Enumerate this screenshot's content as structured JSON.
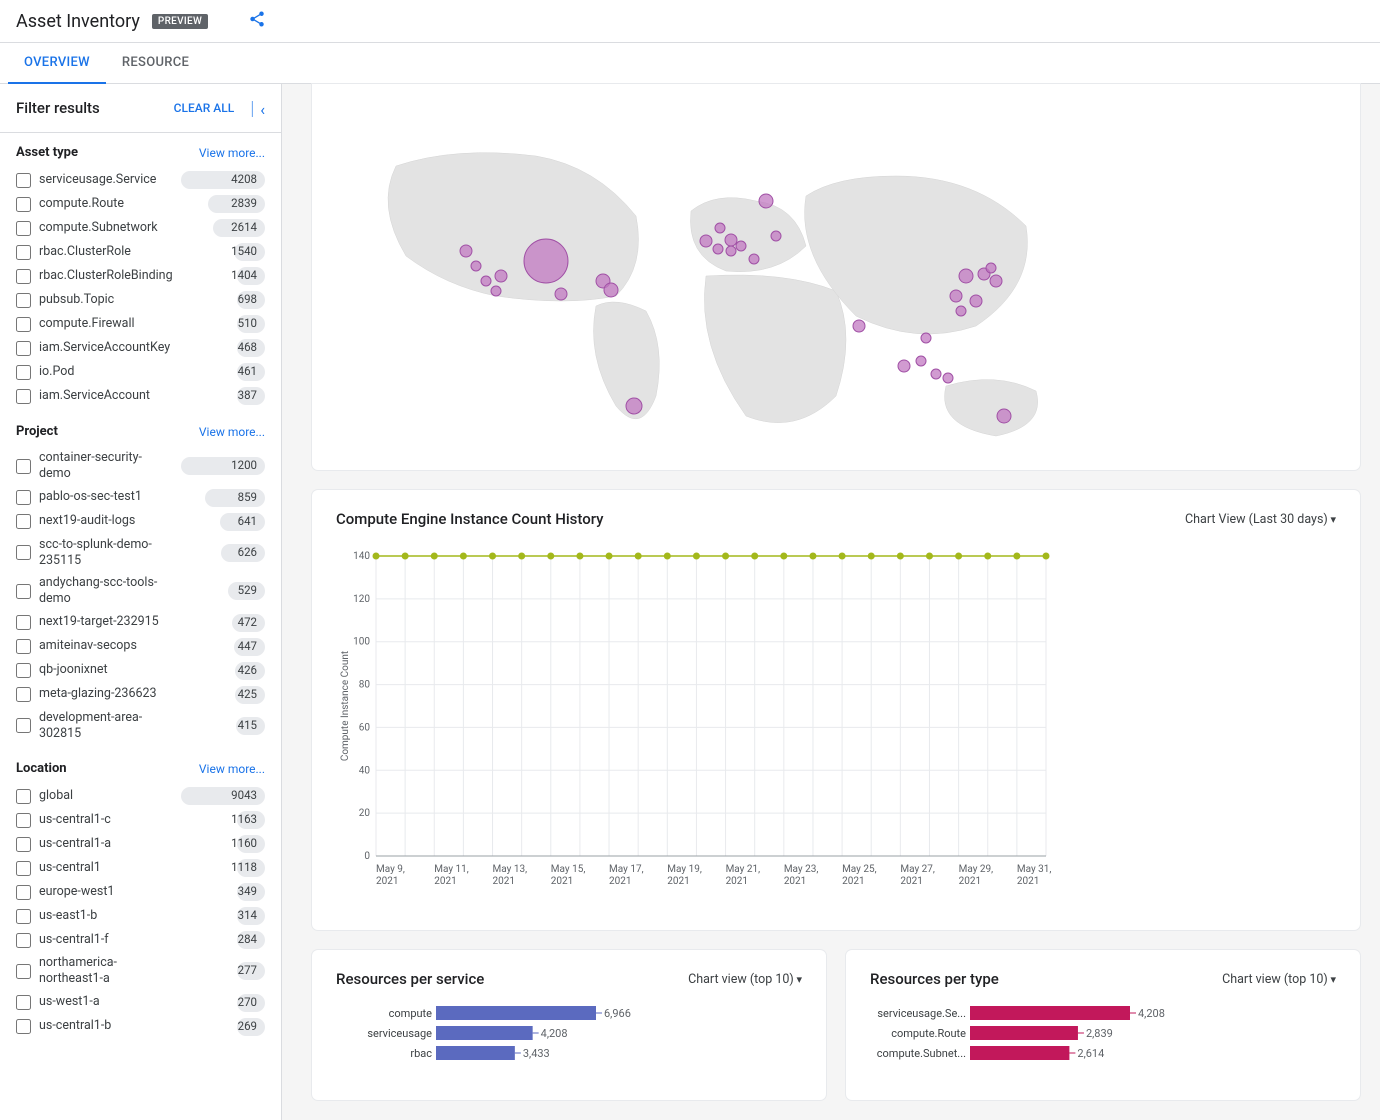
{
  "header": {
    "title": "Asset Inventory",
    "badge": "PREVIEW"
  },
  "tabs": {
    "overview": "OVERVIEW",
    "resource": "RESOURCE"
  },
  "filter": {
    "title": "Filter results",
    "clear": "CLEAR ALL",
    "view_more": "View more..."
  },
  "facets": {
    "asset_type": {
      "title": "Asset type",
      "max": 4208,
      "items": [
        {
          "label": "serviceusage.Service",
          "count": 4208
        },
        {
          "label": "compute.Route",
          "count": 2839
        },
        {
          "label": "compute.Subnetwork",
          "count": 2614
        },
        {
          "label": "rbac.ClusterRole",
          "count": 1540
        },
        {
          "label": "rbac.ClusterRoleBinding",
          "count": 1404
        },
        {
          "label": "pubsub.Topic",
          "count": 698
        },
        {
          "label": "compute.Firewall",
          "count": 510
        },
        {
          "label": "iam.ServiceAccountKey",
          "count": 468
        },
        {
          "label": "io.Pod",
          "count": 461
        },
        {
          "label": "iam.ServiceAccount",
          "count": 387
        }
      ]
    },
    "project": {
      "title": "Project",
      "max": 1200,
      "items": [
        {
          "label": "container-security-demo",
          "count": 1200
        },
        {
          "label": "pablo-os-sec-test1",
          "count": 859
        },
        {
          "label": "next19-audit-logs",
          "count": 641
        },
        {
          "label": "scc-to-splunk-demo-235115",
          "count": 626
        },
        {
          "label": "andychang-scc-tools-demo",
          "count": 529
        },
        {
          "label": "next19-target-232915",
          "count": 472
        },
        {
          "label": "amiteinav-secops",
          "count": 447
        },
        {
          "label": "qb-joonixnet",
          "count": 426
        },
        {
          "label": "meta-glazing-236623",
          "count": 425
        },
        {
          "label": "development-area-302815",
          "count": 415
        }
      ]
    },
    "location": {
      "title": "Location",
      "max": 9043,
      "items": [
        {
          "label": "global",
          "count": 9043
        },
        {
          "label": "us-central1-c",
          "count": 1163
        },
        {
          "label": "us-central1-a",
          "count": 1160
        },
        {
          "label": "us-central1",
          "count": 1118
        },
        {
          "label": "europe-west1",
          "count": 349
        },
        {
          "label": "us-east1-b",
          "count": 314
        },
        {
          "label": "us-central1-f",
          "count": 284
        },
        {
          "label": "northamerica-northeast1-a",
          "count": 277
        },
        {
          "label": "us-west1-a",
          "count": 270
        },
        {
          "label": "us-central1-b",
          "count": 269
        }
      ]
    }
  },
  "map": {
    "bg": "#eeeeee",
    "land": "#e3e3e3",
    "dot_fill": "#c27ac2",
    "dot_stroke": "#a050a5",
    "points": [
      {
        "x": 130,
        "y": 155,
        "r": 6
      },
      {
        "x": 140,
        "y": 170,
        "r": 5
      },
      {
        "x": 150,
        "y": 185,
        "r": 5
      },
      {
        "x": 165,
        "y": 180,
        "r": 6
      },
      {
        "x": 160,
        "y": 195,
        "r": 5
      },
      {
        "x": 210,
        "y": 165,
        "r": 22
      },
      {
        "x": 225,
        "y": 198,
        "r": 6
      },
      {
        "x": 267,
        "y": 185,
        "r": 7
      },
      {
        "x": 275,
        "y": 194,
        "r": 7
      },
      {
        "x": 298,
        "y": 310,
        "r": 8
      },
      {
        "x": 370,
        "y": 145,
        "r": 6
      },
      {
        "x": 384,
        "y": 132,
        "r": 5
      },
      {
        "x": 395,
        "y": 144,
        "r": 6
      },
      {
        "x": 382,
        "y": 153,
        "r": 5
      },
      {
        "x": 395,
        "y": 155,
        "r": 5
      },
      {
        "x": 405,
        "y": 150,
        "r": 5
      },
      {
        "x": 418,
        "y": 163,
        "r": 5
      },
      {
        "x": 430,
        "y": 105,
        "r": 7
      },
      {
        "x": 440,
        "y": 140,
        "r": 5
      },
      {
        "x": 523,
        "y": 230,
        "r": 6
      },
      {
        "x": 568,
        "y": 270,
        "r": 6
      },
      {
        "x": 590,
        "y": 242,
        "r": 5
      },
      {
        "x": 585,
        "y": 265,
        "r": 5
      },
      {
        "x": 600,
        "y": 278,
        "r": 5
      },
      {
        "x": 612,
        "y": 282,
        "r": 5
      },
      {
        "x": 620,
        "y": 200,
        "r": 6
      },
      {
        "x": 625,
        "y": 215,
        "r": 5
      },
      {
        "x": 640,
        "y": 205,
        "r": 6
      },
      {
        "x": 630,
        "y": 180,
        "r": 7
      },
      {
        "x": 648,
        "y": 178,
        "r": 6
      },
      {
        "x": 660,
        "y": 185,
        "r": 6
      },
      {
        "x": 655,
        "y": 172,
        "r": 5
      },
      {
        "x": 668,
        "y": 320,
        "r": 7
      }
    ]
  },
  "history": {
    "title": "Compute Engine Instance Count History",
    "dropdown": "Chart View (Last 30 days)",
    "y_label": "Compute Instance Count",
    "ylim": [
      0,
      140
    ],
    "ytick_step": 20,
    "value": 140,
    "grid": "#e8eaed",
    "line": "#a3b81b",
    "dot": "#a3b81b",
    "x_labels": [
      "May 9, 2021",
      "May 11, 2021",
      "May 13, 2021",
      "May 15, 2021",
      "May 17, 2021",
      "May 19, 2021",
      "May 21, 2021",
      "May 23, 2021",
      "May 25, 2021",
      "May 27, 2021",
      "May 29, 2021",
      "May 31, 2021"
    ]
  },
  "per_service": {
    "title": "Resources per service",
    "dropdown": "Chart view (top 10)",
    "color": "#5b6abf",
    "max": 6966,
    "items": [
      {
        "label": "compute",
        "value": 6966,
        "text": "6,966"
      },
      {
        "label": "serviceusage",
        "value": 4208,
        "text": "4,208"
      },
      {
        "label": "rbac",
        "value": 3433,
        "text": "3,433"
      }
    ]
  },
  "per_type": {
    "title": "Resources per type",
    "dropdown": "Chart view (top 10)",
    "color": "#c2185b",
    "max": 4208,
    "items": [
      {
        "label": "serviceusage.Se...",
        "value": 4208,
        "text": "4,208"
      },
      {
        "label": "compute.Route",
        "value": 2839,
        "text": "2,839"
      },
      {
        "label": "compute.Subnet...",
        "value": 2614,
        "text": "2,614"
      }
    ]
  }
}
